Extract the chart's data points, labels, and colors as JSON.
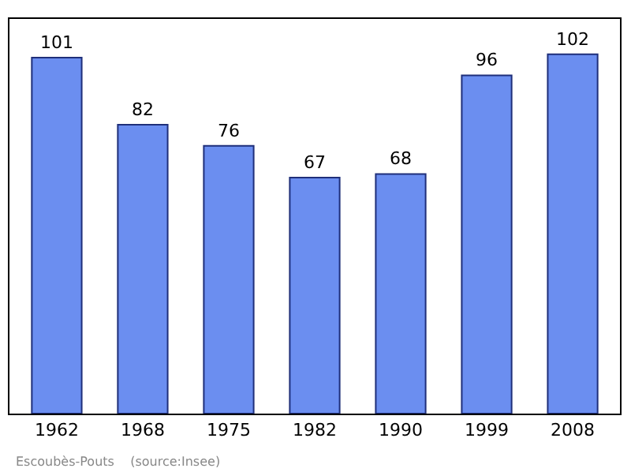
{
  "chart_data": {
    "type": "bar",
    "categories": [
      "1962",
      "1968",
      "1975",
      "1982",
      "1990",
      "1999",
      "2008"
    ],
    "values": [
      101,
      82,
      76,
      67,
      68,
      96,
      102
    ],
    "color": "#6b8ef0",
    "ylim": [
      0,
      112
    ],
    "data_labels": true,
    "grid": false,
    "legend": false,
    "tick_labels": "x",
    "annotations": [
      "Escoubès-Pouts    (source:Insee)"
    ]
  }
}
